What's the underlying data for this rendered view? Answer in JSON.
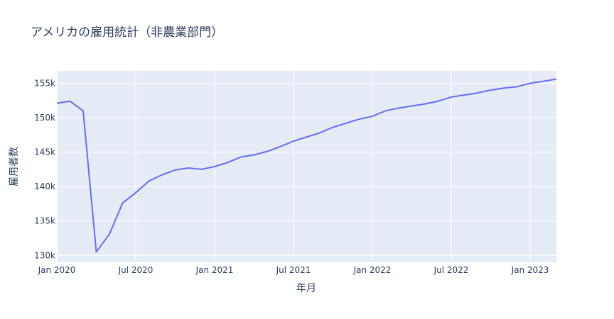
{
  "chart_data": {
    "type": "line",
    "title": "アメリカの雇用統計（非農業部門）",
    "xlabel": "年月",
    "ylabel": "雇用者数",
    "x": [
      "2020-01",
      "2020-02",
      "2020-03",
      "2020-04",
      "2020-05",
      "2020-06",
      "2020-07",
      "2020-08",
      "2020-09",
      "2020-10",
      "2020-11",
      "2020-12",
      "2021-01",
      "2021-02",
      "2021-03",
      "2021-04",
      "2021-05",
      "2021-06",
      "2021-07",
      "2021-08",
      "2021-09",
      "2021-10",
      "2021-11",
      "2021-12",
      "2022-01",
      "2022-02",
      "2022-03",
      "2022-04",
      "2022-05",
      "2022-06",
      "2022-07",
      "2022-08",
      "2022-09",
      "2022-10",
      "2022-11",
      "2022-12",
      "2023-01",
      "2023-02",
      "2023-03"
    ],
    "series": [
      {
        "values": [
          152100,
          152400,
          151000,
          130500,
          133100,
          137600,
          139100,
          140800,
          141700,
          142400,
          142700,
          142500,
          142900,
          143500,
          144300,
          144600,
          145100,
          145800,
          146600,
          147200,
          147800,
          148600,
          149200,
          149800,
          150200,
          151000,
          151400,
          151700,
          152000,
          152400,
          153000,
          153300,
          153600,
          154000,
          154300,
          154500,
          155000,
          155300,
          155600
        ]
      }
    ],
    "x_ticks": [
      "Jan 2020",
      "Jul 2020",
      "Jan 2021",
      "Jul 2021",
      "Jan 2022",
      "Jul 2022",
      "Jan 2023"
    ],
    "y_ticks": [
      "130k",
      "135k",
      "140k",
      "145k",
      "150k",
      "155k"
    ],
    "ylim": [
      129000,
      156800
    ],
    "xlim": [
      "2020-01",
      "2023-03"
    ],
    "grid": true,
    "line_color": "#636efa",
    "plot_bg": "#e5ecf6",
    "grid_color": "#ffffff"
  }
}
